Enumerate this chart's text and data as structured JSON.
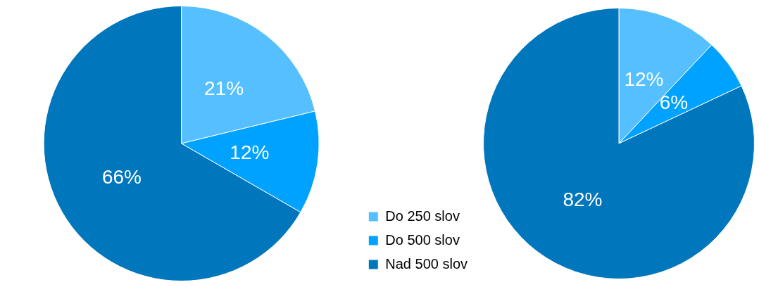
{
  "chart_data": [
    {
      "type": "pie",
      "categories": [
        "Do 250 slov",
        "Do 500 slov",
        "Nad 500 slov"
      ],
      "values": [
        21,
        12,
        66
      ],
      "value_labels": [
        "21%",
        "12%",
        "66%"
      ],
      "colors": [
        "#55bfff",
        "#00a2ff",
        "#0077bd"
      ],
      "legend": "bottom right"
    },
    {
      "type": "pie",
      "categories": [
        null,
        null,
        null
      ],
      "values": [
        12,
        6,
        82
      ],
      "value_labels": [
        "12%",
        "6%",
        "82%"
      ],
      "colors": [
        "#55bfff",
        "#00a2ff",
        "#0077bd"
      ]
    }
  ]
}
